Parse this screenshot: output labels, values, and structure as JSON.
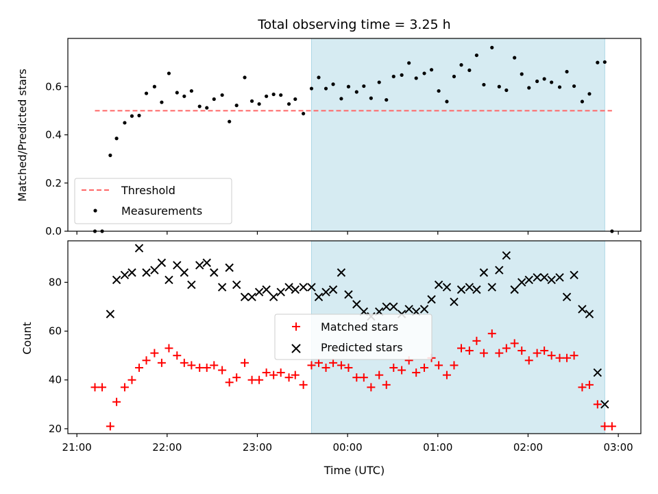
{
  "chart_data": {
    "type": "scatter",
    "title": "Total observing time = 3.25 h",
    "xlabel": "Time (UTC)",
    "x_unit": "hours (UTC)",
    "x_ticks": [
      {
        "value": 21,
        "label": "21:00"
      },
      {
        "value": 22,
        "label": "22:00"
      },
      {
        "value": 23,
        "label": "23:00"
      },
      {
        "value": 24,
        "label": "00:00"
      },
      {
        "value": 25,
        "label": "01:00"
      },
      {
        "value": 26,
        "label": "02:00"
      },
      {
        "value": 27,
        "label": "03:00"
      }
    ],
    "xlim": [
      20.9,
      27.25
    ],
    "highlight_span": {
      "start": 23.6,
      "end": 26.85,
      "color": "#add8e6"
    },
    "grid": false,
    "colors": {
      "threshold": "#ff6666",
      "measurements": "#000000",
      "matched": "#ff0000",
      "predicted": "#000000",
      "span": "#add8e6"
    },
    "panels": [
      {
        "ylabel": "Matched/Predicted stars",
        "ylim": [
          0,
          0.8
        ],
        "yticks": [
          "0.0",
          "0.2",
          "0.4",
          "0.6"
        ],
        "ytick_values": [
          0,
          0.2,
          0.4,
          0.6
        ],
        "legend_position": "lower-left",
        "threshold": {
          "name": "Threshold",
          "value": 0.5,
          "x_range": [
            21.2,
            26.93
          ]
        },
        "series": [
          {
            "name": "Measurements",
            "marker": "dot",
            "x": [
              21.2,
              21.28,
              21.37,
              21.44,
              21.53,
              21.61,
              21.69,
              21.77,
              21.86,
              21.94,
              22.02,
              22.11,
              22.19,
              22.27,
              22.36,
              22.44,
              22.52,
              22.61,
              22.69,
              22.77,
              22.86,
              22.94,
              23.02,
              23.1,
              23.18,
              23.26,
              23.35,
              23.42,
              23.51,
              23.6,
              23.68,
              23.76,
              23.84,
              23.93,
              24.01,
              24.1,
              24.18,
              24.26,
              24.35,
              24.43,
              24.51,
              24.6,
              24.68,
              24.76,
              24.85,
              24.93,
              25.01,
              25.1,
              25.18,
              25.26,
              25.35,
              25.43,
              25.51,
              25.6,
              25.68,
              25.76,
              25.85,
              25.93,
              26.01,
              26.1,
              26.18,
              26.26,
              26.35,
              26.43,
              26.51,
              26.6,
              26.68,
              26.77,
              26.85,
              26.93
            ],
            "y": [
              0.0,
              0.0,
              0.315,
              0.385,
              0.45,
              0.478,
              0.48,
              0.572,
              0.6,
              0.535,
              0.655,
              0.575,
              0.56,
              0.582,
              0.518,
              0.512,
              0.548,
              0.565,
              0.455,
              0.522,
              0.638,
              0.54,
              0.528,
              0.56,
              0.568,
              0.565,
              0.528,
              0.548,
              0.488,
              0.592,
              0.638,
              0.592,
              0.61,
              0.55,
              0.6,
              0.578,
              0.602,
              0.552,
              0.618,
              0.545,
              0.642,
              0.648,
              0.698,
              0.635,
              0.655,
              0.67,
              0.582,
              0.538,
              0.642,
              0.69,
              0.668,
              0.73,
              0.608,
              0.762,
              0.6,
              0.585,
              0.72,
              0.652,
              0.595,
              0.622,
              0.632,
              0.618,
              0.598,
              0.662,
              0.602,
              0.538,
              0.57,
              0.7,
              0.702,
              0.0
            ]
          }
        ]
      },
      {
        "ylabel": "Count",
        "ylim": [
          18,
          97
        ],
        "yticks": [
          "20",
          "40",
          "60",
          "80"
        ],
        "ytick_values": [
          20,
          40,
          60,
          80
        ],
        "legend_position": "center",
        "series": [
          {
            "name": "Matched stars",
            "marker": "plus",
            "x": [
              21.2,
              21.28,
              21.37,
              21.44,
              21.53,
              21.61,
              21.69,
              21.77,
              21.86,
              21.94,
              22.02,
              22.11,
              22.19,
              22.27,
              22.36,
              22.44,
              22.52,
              22.61,
              22.69,
              22.77,
              22.86,
              22.94,
              23.02,
              23.1,
              23.18,
              23.26,
              23.35,
              23.42,
              23.51,
              23.6,
              23.68,
              23.76,
              23.84,
              23.93,
              24.01,
              24.1,
              24.18,
              24.26,
              24.35,
              24.43,
              24.51,
              24.6,
              24.68,
              24.76,
              24.85,
              24.93,
              25.01,
              25.1,
              25.18,
              25.26,
              25.35,
              25.43,
              25.51,
              25.6,
              25.68,
              25.76,
              25.85,
              25.93,
              26.01,
              26.1,
              26.18,
              26.26,
              26.35,
              26.43,
              26.51,
              26.6,
              26.68,
              26.77,
              26.85,
              26.93
            ],
            "y": [
              37,
              37,
              21,
              31,
              37,
              40,
              45,
              48,
              51,
              47,
              53,
              50,
              47,
              46,
              45,
              45,
              46,
              44,
              39,
              41,
              47,
              40,
              40,
              43,
              42,
              43,
              41,
              42,
              38,
              46,
              47,
              45,
              47,
              46,
              45,
              41,
              41,
              37,
              42,
              38,
              45,
              44,
              48,
              43,
              45,
              49,
              46,
              42,
              46,
              53,
              52,
              56,
              51,
              59,
              51,
              53,
              55,
              52,
              48,
              51,
              52,
              50,
              49,
              49,
              50,
              37,
              38,
              30,
              21,
              21
            ]
          },
          {
            "name": "Predicted stars",
            "marker": "x",
            "x": [
              21.37,
              21.44,
              21.53,
              21.61,
              21.69,
              21.77,
              21.86,
              21.94,
              22.02,
              22.11,
              22.19,
              22.27,
              22.36,
              22.44,
              22.52,
              22.61,
              22.69,
              22.77,
              22.86,
              22.94,
              23.02,
              23.1,
              23.18,
              23.26,
              23.35,
              23.42,
              23.51,
              23.6,
              23.68,
              23.76,
              23.84,
              23.93,
              24.01,
              24.1,
              24.18,
              24.26,
              24.35,
              24.43,
              24.51,
              24.6,
              24.68,
              24.76,
              24.85,
              24.93,
              25.01,
              25.1,
              25.18,
              25.26,
              25.35,
              25.43,
              25.51,
              25.6,
              25.68,
              25.76,
              25.85,
              25.93,
              26.01,
              26.1,
              26.18,
              26.26,
              26.35,
              26.43,
              26.51,
              26.6,
              26.68,
              26.77,
              26.85
            ],
            "y": [
              67,
              81,
              83,
              84,
              94,
              84,
              85,
              88,
              81,
              87,
              84,
              79,
              87,
              88,
              84,
              78,
              86,
              79,
              74,
              74,
              76,
              77,
              74,
              76,
              78,
              77,
              78,
              78,
              74,
              76,
              77,
              84,
              75,
              71,
              68,
              66,
              68,
              70,
              70,
              67,
              69,
              68,
              69,
              73,
              79,
              78,
              72,
              77,
              78,
              77,
              84,
              78,
              85,
              91,
              77,
              80,
              81,
              82,
              82,
              81,
              82,
              74,
              83,
              69,
              67,
              43,
              30
            ]
          }
        ]
      }
    ]
  }
}
